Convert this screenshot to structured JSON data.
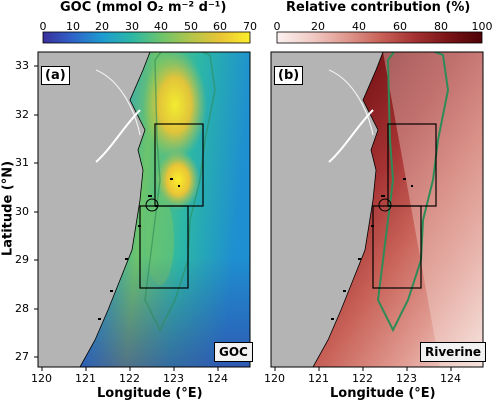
{
  "colorbar_left": {
    "title": "GOC (mmol O₂ m⁻² d⁻¹)",
    "ticks": [
      "0",
      "10",
      "20",
      "30",
      "40",
      "50",
      "60",
      "70"
    ],
    "colormap": [
      "#3b2f9b",
      "#2e63c9",
      "#1e9bd0",
      "#2cb7a6",
      "#6cc46c",
      "#b3c54a",
      "#e9c436",
      "#fbee2b"
    ]
  },
  "colorbar_right": {
    "title": "Relative contribution (%)",
    "ticks": [
      "0",
      "20",
      "40",
      "60",
      "80",
      "100"
    ],
    "colormap": [
      "#fbf1ef",
      "#f1ccc6",
      "#e09a90",
      "#c9645a",
      "#a63333",
      "#7a1417",
      "#4e0408"
    ]
  },
  "panel_a": {
    "letter": "(a)",
    "tag": "GOC"
  },
  "panel_b": {
    "letter": "(b)",
    "tag": "Riverine"
  },
  "axes": {
    "xlabel": "Longitude (°E)",
    "ylabel": "Latitude (°N)",
    "xticks": [
      "120",
      "121",
      "122",
      "123",
      "124"
    ],
    "yticks": [
      "33",
      "32",
      "31",
      "30",
      "29",
      "28",
      "27"
    ]
  },
  "colors": {
    "land": "#b4b4b4",
    "coastline": "#000000",
    "plume_contour": "#2e8b57",
    "box": "#000000"
  }
}
